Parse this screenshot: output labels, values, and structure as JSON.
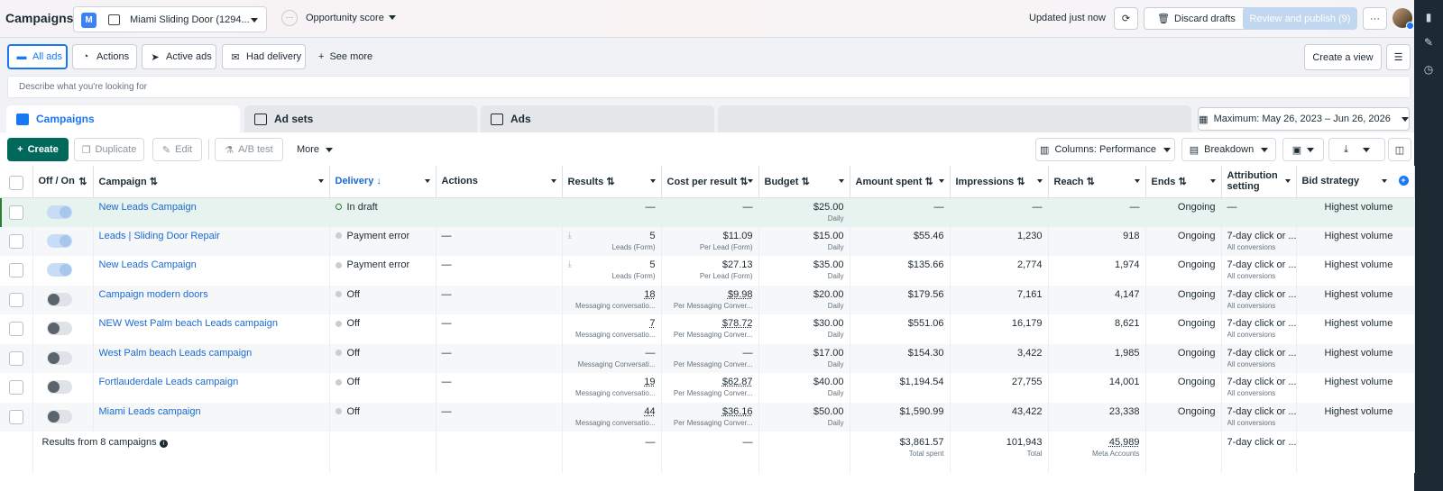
{
  "header": {
    "title": "Campaigns",
    "account_badge": "M",
    "account_name": "Miami Sliding Door (1294...",
    "opportunity": "Opportunity score",
    "updated": "Updated just now",
    "discard": "Discard drafts",
    "review": "Review and publish (9)",
    "more": "···"
  },
  "filters": {
    "items": [
      {
        "label": "All ads",
        "icon": "folder-icon"
      },
      {
        "label": "Actions",
        "icon": "gauge-icon"
      },
      {
        "label": "Active ads",
        "icon": "send-icon"
      },
      {
        "label": "Had delivery",
        "icon": "inbox-icon"
      }
    ],
    "see_more": "See more",
    "create_view": "Create a view"
  },
  "search": {
    "placeholder": "Describe what you're looking for"
  },
  "tabs": {
    "campaigns": "Campaigns",
    "adsets": "Ad sets",
    "ads": "Ads"
  },
  "date_range": "Maximum: May 26, 2023 – Jun 26, 2026",
  "toolbar": {
    "create": "Create",
    "duplicate": "Duplicate",
    "edit": "Edit",
    "ab_test": "A/B test",
    "more": "More",
    "columns": "Columns: Performance",
    "breakdown": "Breakdown"
  },
  "columns": [
    "Off / On",
    "Campaign",
    "Delivery",
    "Actions",
    "Results",
    "Cost per result",
    "Budget",
    "Amount spent",
    "Impressions",
    "Reach",
    "Ends",
    "Attribution setting",
    "Bid strategy"
  ],
  "rows": [
    {
      "name": "New Leads Campaign",
      "status": "on",
      "delivery": "In draft",
      "actions": "",
      "results": "—",
      "results_sub": "",
      "cpr": "—",
      "cpr_sub": "",
      "budget": "$25.00",
      "budget_sub": "Daily",
      "spent": "—",
      "impr": "—",
      "reach": "—",
      "ends": "Ongoing",
      "attr": "—",
      "attr_sub": "",
      "bid": "Highest volume"
    },
    {
      "name": "Leads | Sliding Door Repair",
      "status": "on",
      "delivery": "Payment error",
      "actions": "—",
      "results": "5",
      "results_sub": "Leads (Form)",
      "cpr": "$11.09",
      "cpr_sub": "Per Lead (Form)",
      "budget": "$15.00",
      "budget_sub": "Daily",
      "spent": "$55.46",
      "impr": "1,230",
      "reach": "918",
      "ends": "Ongoing",
      "attr": "7-day click or ...",
      "attr_sub": "All conversions",
      "bid": "Highest volume"
    },
    {
      "name": "New Leads Campaign",
      "status": "on",
      "delivery": "Payment error",
      "actions": "—",
      "results": "5",
      "results_sub": "Leads (Form)",
      "cpr": "$27.13",
      "cpr_sub": "Per Lead (Form)",
      "budget": "$35.00",
      "budget_sub": "Daily",
      "spent": "$135.66",
      "impr": "2,774",
      "reach": "1,974",
      "ends": "Ongoing",
      "attr": "7-day click or ...",
      "attr_sub": "All conversions",
      "bid": "Highest volume"
    },
    {
      "name": "Campaign modern doors",
      "status": "off",
      "delivery": "Off",
      "actions": "—",
      "results": "18",
      "results_sub": "Messaging conversatio...",
      "cpr": "$9.98",
      "cpr_sub": "Per Messaging Conver...",
      "budget": "$20.00",
      "budget_sub": "Daily",
      "spent": "$179.56",
      "impr": "7,161",
      "reach": "4,147",
      "ends": "Ongoing",
      "attr": "7-day click or ...",
      "attr_sub": "All conversions",
      "bid": "Highest volume"
    },
    {
      "name": "NEW West Palm beach Leads campaign",
      "status": "off",
      "delivery": "Off",
      "actions": "—",
      "results": "7",
      "results_sub": "Messaging conversatio...",
      "cpr": "$78.72",
      "cpr_sub": "Per Messaging Conver...",
      "budget": "$30.00",
      "budget_sub": "Daily",
      "spent": "$551.06",
      "impr": "16,179",
      "reach": "8,621",
      "ends": "Ongoing",
      "attr": "7-day click or ...",
      "attr_sub": "All conversions",
      "bid": "Highest volume"
    },
    {
      "name": "West Palm beach Leads campaign",
      "status": "off",
      "delivery": "Off",
      "actions": "—",
      "results": "—",
      "results_sub": "Messaging Conversati...",
      "cpr": "—",
      "cpr_sub": "Per Messaging Conver...",
      "budget": "$17.00",
      "budget_sub": "Daily",
      "spent": "$154.30",
      "impr": "3,422",
      "reach": "1,985",
      "ends": "Ongoing",
      "attr": "7-day click or ...",
      "attr_sub": "All conversions",
      "bid": "Highest volume"
    },
    {
      "name": "Fortlauderdale Leads campaign",
      "status": "off",
      "delivery": "Off",
      "actions": "—",
      "results": "19",
      "results_sub": "Messaging conversatio...",
      "cpr": "$62.87",
      "cpr_sub": "Per Messaging Conver...",
      "budget": "$40.00",
      "budget_sub": "Daily",
      "spent": "$1,194.54",
      "impr": "27,755",
      "reach": "14,001",
      "ends": "Ongoing",
      "attr": "7-day click or ...",
      "attr_sub": "All conversions",
      "bid": "Highest volume"
    },
    {
      "name": "Miami Leads campaign",
      "status": "off",
      "delivery": "Off",
      "actions": "—",
      "results": "44",
      "results_sub": "Messaging conversatio...",
      "cpr": "$36.16",
      "cpr_sub": "Per Messaging Conver...",
      "budget": "$50.00",
      "budget_sub": "Daily",
      "spent": "$1,590.99",
      "impr": "43,422",
      "reach": "23,338",
      "ends": "Ongoing",
      "attr": "7-day click or ...",
      "attr_sub": "All conversions",
      "bid": "Highest volume"
    }
  ],
  "totals": {
    "label": "Results from 8 campaigns",
    "results": "—",
    "cpr": "—",
    "spent": "$3,861.57",
    "spent_sub": "Total spent",
    "impr": "101,943",
    "impr_sub": "Total",
    "reach": "45,989",
    "reach_sub": "Meta Accounts",
    "attr": "7-day click or ..."
  },
  "colors": {
    "accent": "#1877f2",
    "create": "#00695c",
    "draft_row": "#e7f3ee",
    "rail": "#1c2b33"
  }
}
